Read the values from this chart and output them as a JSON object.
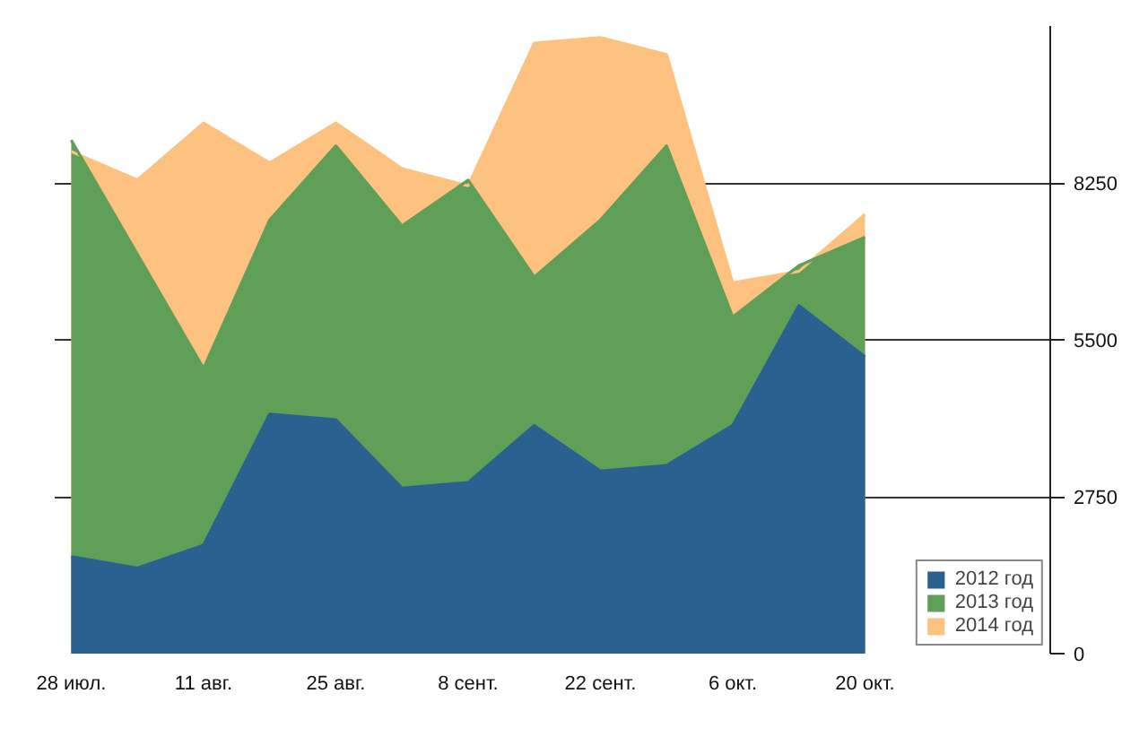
{
  "chart_data": {
    "type": "area",
    "categories": [
      "28 июл.",
      null,
      "11 авг.",
      null,
      "25 авг.",
      null,
      "8 сент.",
      null,
      "22 сент.",
      null,
      "6 окт.",
      null,
      "20 окт."
    ],
    "series": [
      {
        "name": "2012 год",
        "color": "#2a6190",
        "values": [
          1700,
          1500,
          1900,
          4200,
          4100,
          2900,
          3000,
          4000,
          3200,
          3300,
          4000,
          6100,
          5200
        ]
      },
      {
        "name": "2013 год",
        "color": "#5f9f58",
        "values": [
          9000,
          7000,
          5000,
          7600,
          8900,
          7500,
          8300,
          6600,
          7600,
          8900,
          5900,
          6800,
          7300
        ]
      },
      {
        "name": "2014 год",
        "color": "#fdc27f",
        "values": [
          8800,
          8300,
          9300,
          8600,
          9300,
          8500,
          8200,
          10700,
          10800,
          10500,
          6500,
          6700,
          7700
        ]
      }
    ],
    "ylim": [
      0,
      11000
    ],
    "yticks": [
      0,
      2750,
      5500,
      8250
    ],
    "grid": "y",
    "legend": "bottom right"
  }
}
